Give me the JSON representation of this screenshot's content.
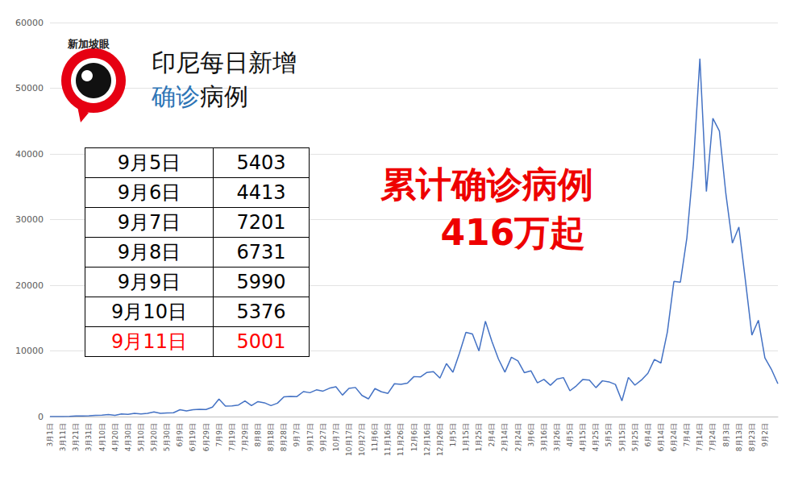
{
  "chart_data": {
    "type": "line",
    "title": "印尼每日新增",
    "subtitle": "确诊病例",
    "logo_text": "新加坡眼",
    "annotation": [
      "累计确诊病例",
      "416万起"
    ],
    "table": {
      "rows": [
        [
          "9月5日",
          5403
        ],
        [
          "9月6日",
          4413
        ],
        [
          "9月7日",
          7201
        ],
        [
          "9月8日",
          6731
        ],
        [
          "9月9日",
          5990
        ],
        [
          "9月10日",
          5376
        ],
        [
          "9月11日",
          5001
        ]
      ]
    },
    "categories": [
      "3月1日",
      null,
      "3月11日",
      null,
      "3月21日",
      null,
      "3月31日",
      null,
      "4月10日",
      null,
      "4月20日",
      null,
      "4月30日",
      null,
      "5月10日",
      null,
      "5月20日",
      null,
      "5月30日",
      null,
      "6月9日",
      null,
      "6月19日",
      null,
      "6月29日",
      null,
      "7月9日",
      null,
      "7月19日",
      null,
      "7月29日",
      null,
      "8月8日",
      null,
      "8月18日",
      null,
      "8月28日",
      null,
      "9月7日",
      null,
      "9月17日",
      null,
      "9月27日",
      null,
      "10月7日",
      null,
      "10月17日",
      null,
      "10月27日",
      null,
      "11月6日",
      null,
      "11月16日",
      null,
      "11月26日",
      null,
      "12月6日",
      null,
      "12月16日",
      null,
      "12月26日",
      null,
      "1月5日",
      null,
      "1月15日",
      null,
      "1月25日",
      null,
      "2月4日",
      null,
      "2月14日",
      null,
      "2月24日",
      null,
      "3月6日",
      null,
      "3月16日",
      null,
      "3月26日",
      null,
      "4月5日",
      null,
      "4月15日",
      null,
      "4月25日",
      null,
      "5月5日",
      null,
      "5月15日",
      null,
      "5月25日",
      null,
      "6月4日",
      null,
      "6月14日",
      null,
      "6月24日",
      null,
      "7月4日",
      null,
      "7月14日",
      null,
      "7月24日",
      null,
      "8月3日",
      null,
      "8月13日",
      null,
      "8月23日",
      null,
      "9月2日",
      null,
      null
    ],
    "values": [
      0,
      2,
      7,
      17,
      81,
      103,
      114,
      181,
      219,
      297,
      185,
      396,
      347,
      484,
      387,
      490,
      693,
      479,
      557,
      585,
      1043,
      857,
      1041,
      1113,
      1082,
      1447,
      2657,
      1591,
      1639,
      1761,
      2381,
      1679,
      2277,
      2098,
      1673,
      2037,
      3003,
      3075,
      3046,
      3806,
      3635,
      4071,
      3874,
      4317,
      4538,
      3267,
      4301,
      4432,
      3222,
      2696,
      4262,
      3770,
      3535,
      4998,
      4917,
      5092,
      6089,
      6033,
      6725,
      6848,
      5854,
      8074,
      6753,
      9640,
      12818,
      12568,
      9994,
      14518,
      11434,
      8776,
      6765,
      9039,
      8493,
      6680,
      6971,
      5144,
      5656,
      4775,
      5712,
      5937,
      3929,
      4687,
      5656,
      5549,
      4402,
      5444,
      5285,
      4891,
      2385,
      5967,
      4782,
      5565,
      6594,
      8700,
      8161,
      12906,
      20574,
      20467,
      27233,
      38391,
      54517,
      34257,
      45416,
      43479,
      33900,
      26415,
      28856,
      20741,
      12408,
      14668,
      8955,
      7201,
      5001
    ],
    "color": "#4472c4",
    "ylim": [
      0,
      60000
    ],
    "yticks": [
      0,
      10000,
      20000,
      30000,
      40000,
      50000,
      60000
    ],
    "grid": true
  }
}
